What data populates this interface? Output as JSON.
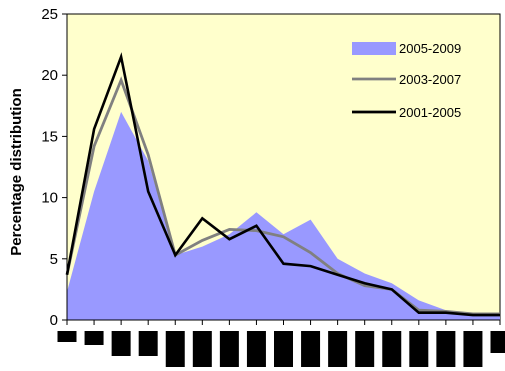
{
  "chart_data": {
    "type": "area",
    "ylabel": "Percentage distribution",
    "ylim": [
      0,
      25
    ],
    "yticks": [
      "0",
      "5",
      "10",
      "15",
      "20",
      "25"
    ],
    "x_count": 17,
    "legend_position": "top-right",
    "colors": {
      "plot_background": "#ffffcc",
      "axis": "#000000"
    },
    "x_label_bar_heights": [
      0.3,
      0.4,
      0.7,
      0.7,
      1,
      1,
      1,
      1,
      1,
      1,
      1,
      1,
      1,
      1,
      1,
      1,
      0.6
    ],
    "series": [
      {
        "name": "2005-2009",
        "style": "area",
        "color": "#9999ff",
        "values": [
          2.3,
          10.5,
          17.0,
          13.0,
          5.3,
          6.0,
          7.0,
          8.8,
          7.0,
          8.2,
          5.0,
          3.8,
          3.0,
          1.6,
          0.8,
          0.4,
          0.3
        ]
      },
      {
        "name": "2003-2007",
        "style": "line",
        "color": "#808080",
        "values": [
          3.7,
          14.2,
          19.6,
          13.5,
          5.3,
          6.5,
          7.4,
          7.3,
          6.8,
          5.5,
          3.8,
          2.8,
          2.5,
          0.8,
          0.7,
          0.5,
          0.5
        ]
      },
      {
        "name": "2001-2005",
        "style": "line",
        "color": "#000000",
        "values": [
          3.7,
          15.6,
          21.5,
          10.5,
          5.3,
          8.3,
          6.6,
          7.7,
          4.6,
          4.4,
          3.7,
          3.0,
          2.5,
          0.6,
          0.6,
          0.4,
          0.4
        ]
      }
    ]
  }
}
